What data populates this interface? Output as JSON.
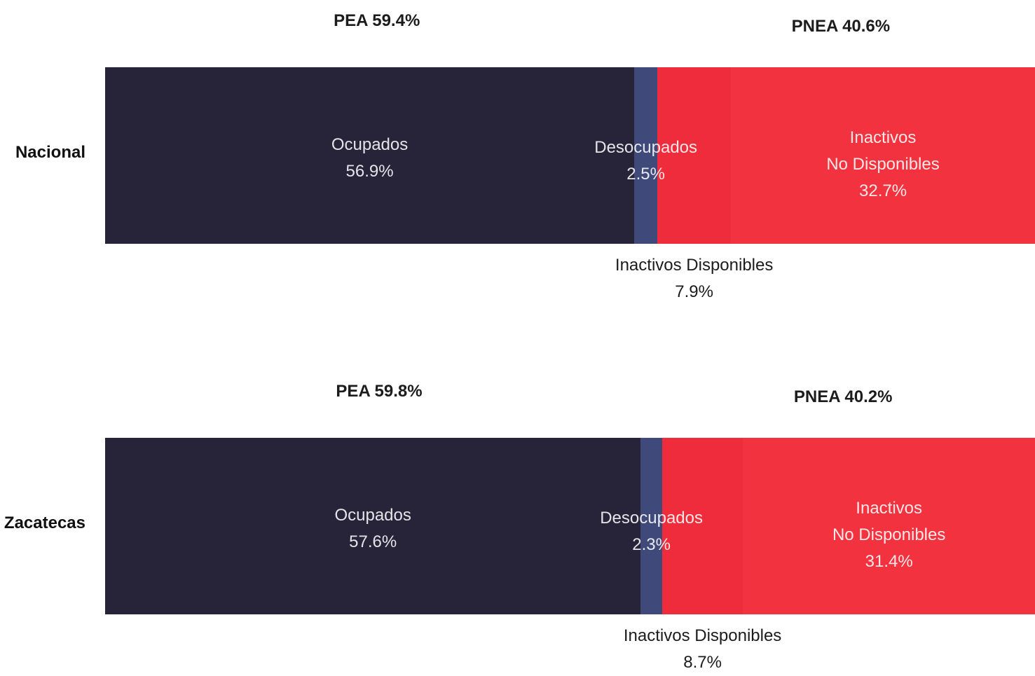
{
  "colors": {
    "ocupados": "#27243a",
    "desocupados": "#3f4a7a",
    "inactivos_disponibles": "#ee2c3b",
    "inactivos_no_disponibles": "#f2333f"
  },
  "chart_data": {
    "type": "bar",
    "orientation": "horizontal",
    "stacked": true,
    "categories": [
      "Nacional",
      "Zacatecas"
    ],
    "series": [
      {
        "name": "Ocupados",
        "values": [
          56.9,
          57.6
        ]
      },
      {
        "name": "Desocupados",
        "values": [
          2.5,
          2.3
        ]
      },
      {
        "name": "Inactivos Disponibles",
        "values": [
          7.9,
          8.7
        ]
      },
      {
        "name": "Inactivos No Disponibles",
        "values": [
          32.7,
          31.4
        ]
      }
    ],
    "groups": [
      {
        "name": "PEA",
        "values": [
          59.4,
          59.8
        ]
      },
      {
        "name": "PNEA",
        "values": [
          40.6,
          40.2
        ]
      }
    ],
    "unit": "%",
    "legend": "none",
    "grid": false
  },
  "labels": {
    "rows": [
      {
        "name": "Nacional",
        "pea": "PEA 59.4%",
        "pnea": "PNEA 40.6%",
        "ocupados": [
          "Ocupados",
          "56.9%"
        ],
        "desocupados": [
          "Desocupados",
          "2.5%"
        ],
        "inactivos_no_disponibles": [
          "Inactivos",
          "No Disponibles",
          "32.7%"
        ],
        "inactivos_disponibles": [
          "Inactivos Disponibles",
          "7.9%"
        ]
      },
      {
        "name": "Zacatecas",
        "pea": "PEA 59.8%",
        "pnea": "PNEA 40.2%",
        "ocupados": [
          "Ocupados",
          "57.6%"
        ],
        "desocupados": [
          "Desocupados",
          "2.3%"
        ],
        "inactivos_no_disponibles": [
          "Inactivos",
          "No Disponibles",
          "31.4%"
        ],
        "inactivos_disponibles": [
          "Inactivos Disponibles",
          "8.7%"
        ]
      }
    ]
  }
}
